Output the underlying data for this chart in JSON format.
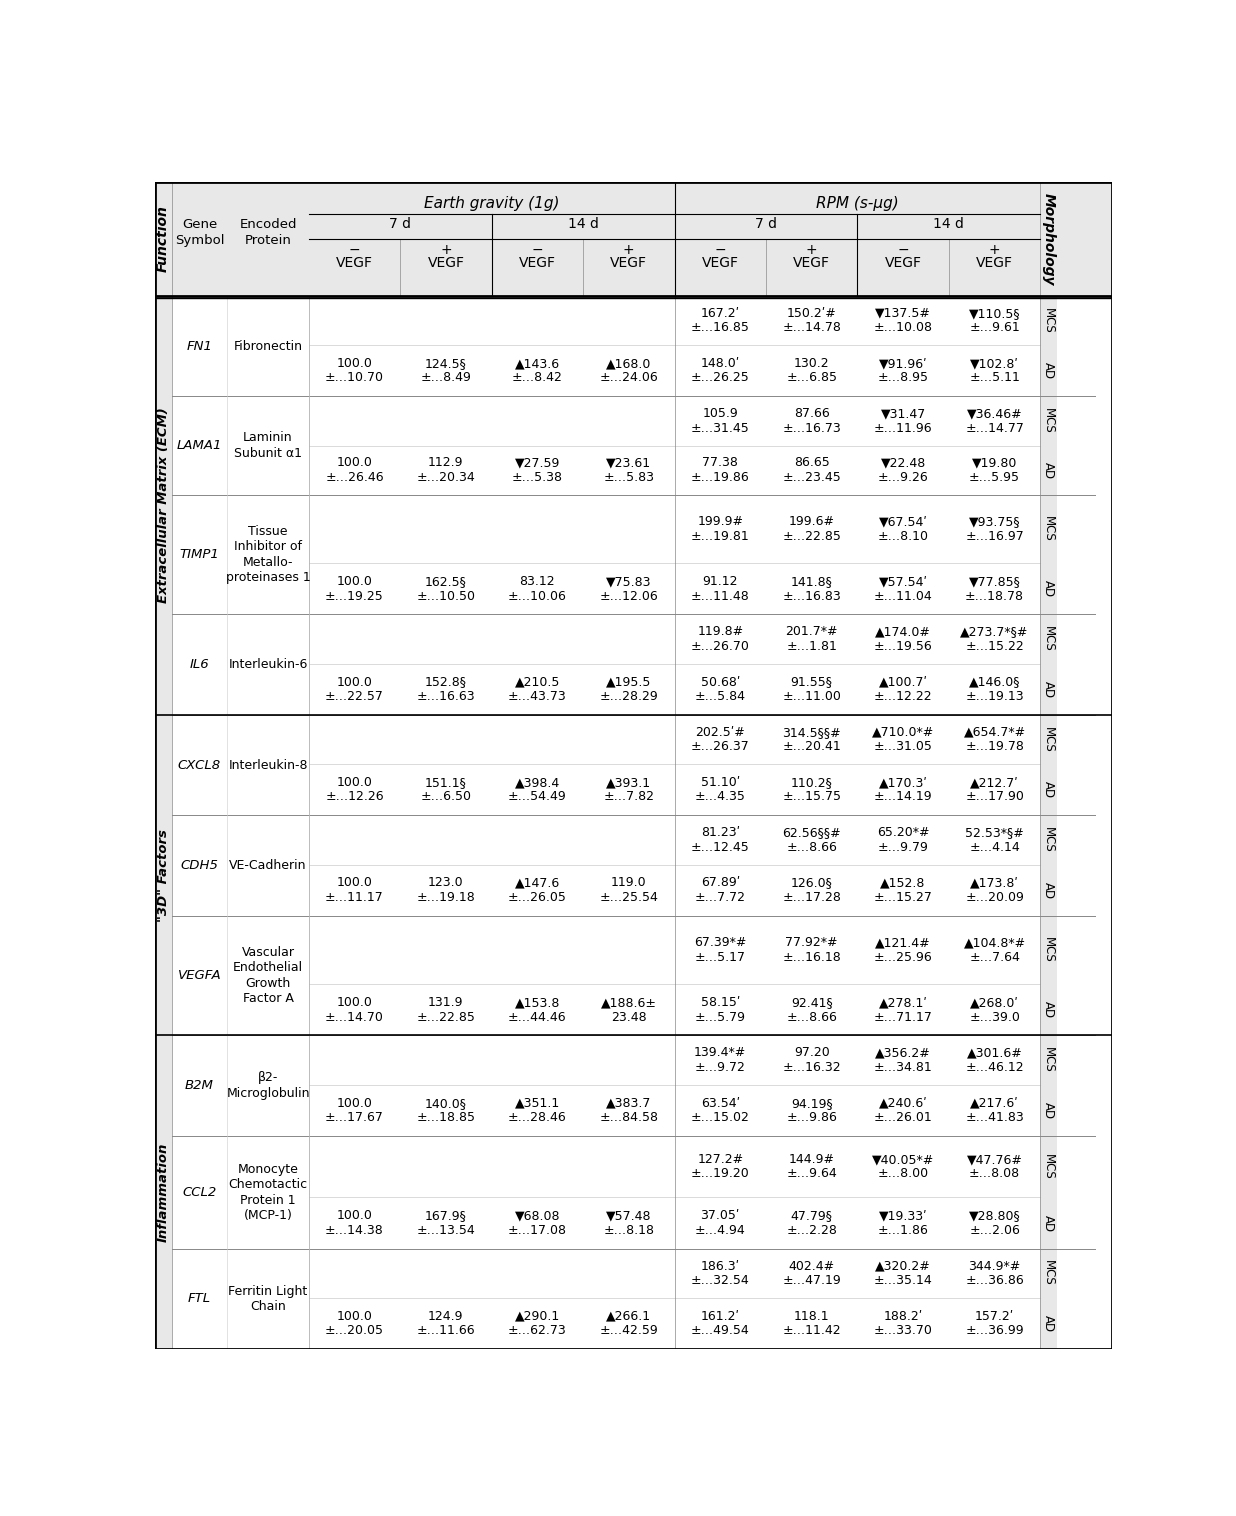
{
  "bg_color": "#e8e8e8",
  "white": "#ffffff",
  "row_line_color": "#999999",
  "header_line_color": "#000000",
  "rows": [
    {
      "gene": "FN1",
      "protein": "Fibronectin",
      "function": "Extracellular Matrix (ECM)",
      "mcs_data": [
        "167.2ʹ\n±…16.85",
        "150.2ʹ#\n±…14.78",
        "▼137.5#\n±…10.08",
        "▼110.5§\n±…9.61"
      ],
      "ad_data": [
        "100.0\n±…10.70",
        "124.5§\n±…8.49",
        "▲143.6\n±…8.42",
        "▲168.0\n±…24.06",
        "148.0ʹ\n±…26.25",
        "130.2\n±…6.85",
        "▼91.96ʹ\n±…8.95",
        "▼102.8ʹ\n±…5.11"
      ]
    },
    {
      "gene": "LAMA1",
      "protein": "Laminin\nSubunit α1",
      "function": "Extracellular Matrix (ECM)",
      "mcs_data": [
        "105.9\n±…31.45",
        "87.66\n±…16.73",
        "▼31.47\n±…11.96",
        "▼36.46#\n±…14.77"
      ],
      "ad_data": [
        "100.0\n±…26.46",
        "112.9\n±…20.34",
        "▼27.59\n±…5.38",
        "▼23.61\n±…5.83",
        "77.38\n±…19.86",
        "86.65\n±…23.45",
        "▼22.48\n±…9.26",
        "▼19.80\n±…5.95"
      ]
    },
    {
      "gene": "TIMP1",
      "protein": "Tissue\nInhibitor of\nMetallo-\nproteinases 1",
      "function": "Extracellular Matrix (ECM)",
      "mcs_data": [
        "199.9#\n±…19.81",
        "199.6#\n±…22.85",
        "▼67.54ʹ\n±…8.10",
        "▼93.75§\n±…16.97"
      ],
      "ad_data": [
        "100.0\n±…19.25",
        "162.5§\n±…10.50",
        "83.12\n±…10.06",
        "▼75.83\n±…12.06",
        "91.12\n±…11.48",
        "141.8§\n±…16.83",
        "▼57.54ʹ\n±…11.04",
        "▼77.85§\n±…18.78"
      ]
    },
    {
      "gene": "IL6",
      "protein": "Interleukin-6",
      "function": "Extracellular Matrix (ECM)",
      "mcs_data": [
        "119.8#\n±…26.70",
        "201.7*#\n±…1.81",
        "▲174.0#\n±…19.56",
        "▲273.7*§#\n±…15.22"
      ],
      "ad_data": [
        "100.0\n±…22.57",
        "152.8§\n±…16.63",
        "▲210.5\n±…43.73",
        "▲195.5\n±…28.29",
        "50.68ʹ\n±…5.84",
        "91.55§\n±…11.00",
        "▲100.7ʹ\n±…12.22",
        "▲146.0§\n±…19.13"
      ]
    },
    {
      "gene": "CXCL8",
      "protein": "Interleukin-8",
      "function": "\"3D\" Factors",
      "mcs_data": [
        "202.5ʹ#\n±…26.37",
        "314.5§§#\n±…20.41",
        "▲710.0*#\n±…31.05",
        "▲654.7*#\n±…19.78"
      ],
      "ad_data": [
        "100.0\n±…12.26",
        "151.1§\n±…6.50",
        "▲398.4\n±…54.49",
        "▲393.1\n±…7.82",
        "51.10ʹ\n±…4.35",
        "110.2§\n±…15.75",
        "▲170.3ʹ\n±…14.19",
        "▲212.7ʹ\n±…17.90"
      ]
    },
    {
      "gene": "CDH5",
      "protein": "VE-Cadherin",
      "function": "\"3D\" Factors",
      "mcs_data": [
        "81.23ʹ\n±…12.45",
        "62.56§§#\n±…8.66",
        "65.20*#\n±…9.79",
        "52.53*§#\n±…4.14"
      ],
      "ad_data": [
        "100.0\n±…11.17",
        "123.0\n±…19.18",
        "▲147.6\n±…26.05",
        "119.0\n±…25.54",
        "67.89ʹ\n±…7.72",
        "126.0§\n±…17.28",
        "▲152.8\n±…15.27",
        "▲173.8ʹ\n±…20.09"
      ]
    },
    {
      "gene": "VEGFA",
      "protein": "Vascular\nEndothelial\nGrowth\nFactor A",
      "function": "\"3D\" Factors",
      "mcs_data": [
        "67.39*#\n±…5.17",
        "77.92*#\n±…16.18",
        "▲121.4#\n±…25.96",
        "▲104.8*#\n±…7.64"
      ],
      "ad_data": [
        "100.0\n±…14.70",
        "131.9\n±…22.85",
        "▲153.8\n±…44.46",
        "▲188.6±\n23.48",
        "58.15ʹ\n±…5.79",
        "92.41§\n±…8.66",
        "▲278.1ʹ\n±…71.17",
        "▲268.0ʹ\n±…39.0"
      ]
    },
    {
      "gene": "B2M",
      "protein": "β2-\nMicroglobulin",
      "function": "Inflammation",
      "mcs_data": [
        "139.4*#\n±…9.72",
        "97.20\n±…16.32",
        "▲356.2#\n±…34.81",
        "▲301.6#\n±…46.12"
      ],
      "ad_data": [
        "100.0\n±…17.67",
        "140.0§\n±…18.85",
        "▲351.1\n±…28.46",
        "▲383.7\n±…84.58",
        "63.54ʹ\n±…15.02",
        "94.19§\n±…9.86",
        "▲240.6ʹ\n±…26.01",
        "▲217.6ʹ\n±…41.83"
      ]
    },
    {
      "gene": "CCL2",
      "protein": "Monocyte\nChemotactic\nProtein 1\n(MCP-1)",
      "function": "Inflammation",
      "mcs_data": [
        "127.2#\n±…19.20",
        "144.9#\n±…9.64",
        "▼40.05*#\n±…8.00",
        "▼47.76#\n±…8.08"
      ],
      "ad_data": [
        "100.0\n±…14.38",
        "167.9§\n±…13.54",
        "▼68.08\n±…17.08",
        "▼57.48\n±…8.18",
        "37.05ʹ\n±…4.94",
        "47.79§\n±…2.28",
        "▼19.33ʹ\n±…1.86",
        "▼28.80§\n±…2.06"
      ]
    },
    {
      "gene": "FTL",
      "protein": "Ferritin Light\nChain",
      "function": "Inflammation",
      "mcs_data": [
        "186.3ʹ\n±…32.54",
        "402.4#\n±…47.19",
        "▲320.2#\n±…35.14",
        "344.9*#\n±…36.86"
      ],
      "ad_data": [
        "100.0\n±…20.05",
        "124.9\n±…11.66",
        "▲290.1\n±…62.73",
        "▲266.1\n±…42.59",
        "161.2ʹ\n±…49.54",
        "118.1\n±…11.42",
        "188.2ʹ\n±…33.70",
        "157.2ʹ\n±…36.99"
      ]
    }
  ]
}
